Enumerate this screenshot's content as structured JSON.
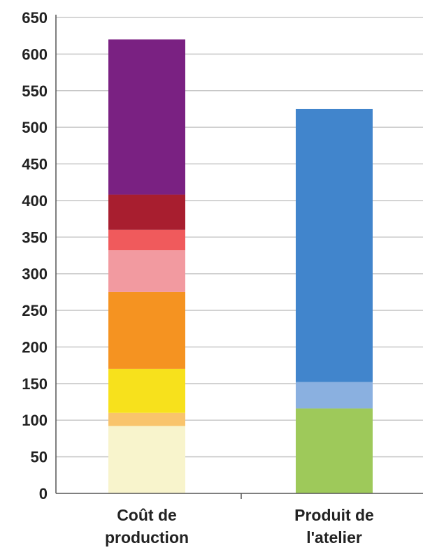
{
  "chart_data": {
    "type": "bar",
    "stacked": true,
    "title": "",
    "xlabel": "",
    "ylabel": "",
    "ylim": [
      0,
      650
    ],
    "yticks": [
      0,
      50,
      100,
      150,
      200,
      250,
      300,
      350,
      400,
      450,
      500,
      550,
      600,
      650
    ],
    "grid": true,
    "legend": "none",
    "categories": [
      {
        "lines": [
          "Coût de",
          "production"
        ]
      },
      {
        "lines": [
          "Produit de",
          "l'atelier"
        ]
      }
    ],
    "stacks": [
      {
        "category_index": 0,
        "total": 620,
        "segments": [
          {
            "value": 92,
            "color": "#f8f4cc"
          },
          {
            "value": 18,
            "color": "#f9c46c"
          },
          {
            "value": 60,
            "color": "#f7e11c"
          },
          {
            "value": 105,
            "color": "#f59321"
          },
          {
            "value": 57,
            "color": "#f29aa0"
          },
          {
            "value": 28,
            "color": "#f05a5c"
          },
          {
            "value": 48,
            "color": "#a81e2f"
          },
          {
            "value": 212,
            "color": "#7a2182"
          }
        ]
      },
      {
        "category_index": 1,
        "total": 525,
        "segments": [
          {
            "value": 116,
            "color": "#9ec95a"
          },
          {
            "value": 36,
            "color": "#8ab0e0"
          },
          {
            "value": 373,
            "color": "#4185cc"
          }
        ]
      }
    ]
  }
}
